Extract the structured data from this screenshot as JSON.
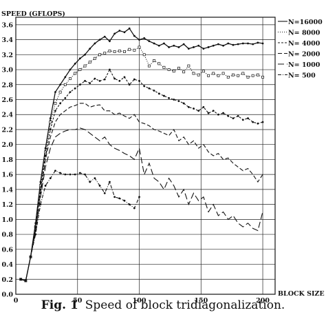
{
  "chart_data": {
    "type": "line",
    "title": "",
    "xlabel": "BLOCK SIZE",
    "ylabel": "SPEED (GFLOPS)",
    "xlim": [
      0,
      210
    ],
    "ylim": [
      0.0,
      3.7
    ],
    "xticks": [
      0,
      50,
      100,
      150,
      200
    ],
    "yticks": [
      0.0,
      0.2,
      0.4,
      0.6,
      0.8,
      1.0,
      1.2,
      1.4,
      1.6,
      1.8,
      2.0,
      2.2,
      2.4,
      2.6,
      2.8,
      3.0,
      3.2,
      3.4,
      3.6
    ],
    "grid": true,
    "legend_position": "top-right",
    "x": [
      4,
      8,
      12,
      16,
      20,
      24,
      28,
      32,
      36,
      40,
      44,
      48,
      52,
      56,
      60,
      64,
      68,
      72,
      76,
      80,
      84,
      88,
      92,
      96,
      100,
      104,
      108,
      112,
      116,
      120,
      124,
      128,
      132,
      136,
      140,
      144,
      148,
      152,
      156,
      160,
      164,
      168,
      172,
      176,
      180,
      184,
      188,
      192,
      196,
      200
    ],
    "series": [
      {
        "name": "N=16000",
        "dash": "",
        "marker": "dot",
        "values": [
          0.2,
          0.18,
          0.5,
          0.95,
          1.5,
          1.95,
          2.35,
          2.7,
          2.8,
          2.9,
          3.0,
          3.08,
          3.15,
          3.2,
          3.28,
          3.35,
          3.4,
          3.44,
          3.38,
          3.48,
          3.52,
          3.5,
          3.55,
          3.45,
          3.4,
          3.42,
          3.38,
          3.35,
          3.32,
          3.35,
          3.3,
          3.32,
          3.3,
          3.34,
          3.28,
          3.3,
          3.32,
          3.28,
          3.3,
          3.32,
          3.34,
          3.32,
          3.35,
          3.33,
          3.34,
          3.35,
          3.35,
          3.34,
          3.36,
          3.35
        ]
      },
      {
        "name": "N= 8000",
        "dash": "1,2",
        "marker": "square",
        "values": [
          0.2,
          0.18,
          0.5,
          0.9,
          1.45,
          1.9,
          2.3,
          2.55,
          2.7,
          2.8,
          2.88,
          2.95,
          3.0,
          3.05,
          3.1,
          3.15,
          3.2,
          3.22,
          3.25,
          3.24,
          3.25,
          3.24,
          3.27,
          3.26,
          3.3,
          3.2,
          3.05,
          3.12,
          3.08,
          3.03,
          3.0,
          2.98,
          3.02,
          2.97,
          3.05,
          2.95,
          2.93,
          2.98,
          2.92,
          2.95,
          2.92,
          2.95,
          2.9,
          2.93,
          2.92,
          2.95,
          2.9,
          2.92,
          2.93,
          2.9
        ]
      },
      {
        "name": "N= 4000",
        "dash": "3,2",
        "marker": "dot",
        "values": [
          0.2,
          0.18,
          0.5,
          0.9,
          1.4,
          1.85,
          2.2,
          2.45,
          2.55,
          2.62,
          2.7,
          2.75,
          2.8,
          2.85,
          2.82,
          2.88,
          2.85,
          2.87,
          3.0,
          2.88,
          2.85,
          2.9,
          2.8,
          2.87,
          2.85,
          2.78,
          2.75,
          2.72,
          2.68,
          2.65,
          2.62,
          2.6,
          2.58,
          2.55,
          2.5,
          2.48,
          2.45,
          2.5,
          2.42,
          2.45,
          2.4,
          2.42,
          2.38,
          2.35,
          2.38,
          2.33,
          2.35,
          2.3,
          2.28,
          2.3
        ]
      },
      {
        "name": "N= 2000",
        "dash": "6,3",
        "marker": "none",
        "values": [
          0.2,
          0.18,
          0.5,
          0.85,
          1.35,
          1.8,
          2.1,
          2.3,
          2.4,
          2.45,
          2.5,
          2.52,
          2.55,
          2.55,
          2.5,
          2.52,
          2.53,
          2.45,
          2.45,
          2.4,
          2.42,
          2.38,
          2.35,
          2.4,
          2.3,
          2.28,
          2.25,
          2.2,
          2.18,
          2.15,
          2.12,
          2.2,
          2.05,
          2.1,
          2.0,
          2.05,
          1.95,
          2.0,
          1.9,
          1.85,
          1.88,
          1.8,
          1.82,
          1.75,
          1.7,
          1.65,
          1.68,
          1.6,
          1.5,
          1.6
        ]
      },
      {
        "name": "N= 1000",
        "dash": "9,4",
        "marker": "none",
        "values": [
          0.2,
          0.18,
          0.5,
          0.85,
          1.3,
          1.7,
          1.95,
          2.1,
          2.15,
          2.18,
          2.2,
          2.2,
          2.22,
          2.2,
          2.15,
          2.1,
          2.05,
          2.1,
          2.0,
          1.95,
          1.92,
          1.88,
          1.85,
          1.8,
          1.95,
          1.6,
          1.75,
          1.55,
          1.5,
          1.4,
          1.55,
          1.45,
          1.3,
          1.4,
          1.2,
          1.35,
          1.25,
          1.3,
          1.1,
          1.2,
          1.05,
          1.1,
          1.0,
          1.05,
          0.95,
          0.9,
          0.95,
          0.88,
          0.85,
          1.1
        ]
      },
      {
        "name": "N=  500",
        "dash": "5,2,1,2",
        "marker": "dot",
        "values": [
          0.2,
          0.18,
          0.5,
          0.8,
          1.2,
          1.45,
          1.55,
          1.65,
          1.62,
          1.6,
          1.6,
          1.6,
          1.62,
          1.6,
          1.5,
          1.55,
          1.45,
          1.35,
          1.5,
          1.3,
          1.28,
          1.25,
          1.2,
          1.15,
          1.3,
          null,
          null,
          null,
          null,
          null,
          null,
          null,
          null,
          null,
          null,
          null,
          null,
          null,
          null,
          null,
          null,
          null,
          null,
          null,
          null,
          null,
          null,
          null,
          null,
          null
        ]
      }
    ]
  },
  "caption": {
    "fig_label": "Fig. 1",
    "text": "Speed of block tridiagonalization."
  }
}
